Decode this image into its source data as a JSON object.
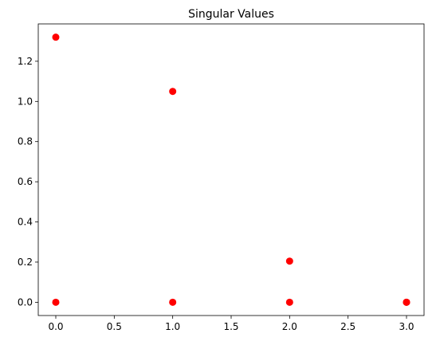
{
  "chart_data": {
    "type": "scatter",
    "title": "Singular Values",
    "xlabel": "",
    "ylabel": "",
    "xlim": [
      -0.15,
      3.15
    ],
    "ylim": [
      -0.066,
      1.386
    ],
    "x_ticks": [
      0.0,
      0.5,
      1.0,
      1.5,
      2.0,
      2.5,
      3.0
    ],
    "x_tick_labels": [
      "0.0",
      "0.5",
      "1.0",
      "1.5",
      "2.0",
      "2.5",
      "3.0"
    ],
    "y_ticks": [
      0.0,
      0.2,
      0.4,
      0.6,
      0.8,
      1.0,
      1.2
    ],
    "y_tick_labels": [
      "0.0",
      "0.2",
      "0.4",
      "0.6",
      "0.8",
      "1.0",
      "1.2"
    ],
    "grid": false,
    "series": [
      {
        "marker_color": "#ff0000",
        "points": [
          {
            "x": 0,
            "y": 1.32
          },
          {
            "x": 0,
            "y": 0.0
          },
          {
            "x": 1,
            "y": 1.05
          },
          {
            "x": 1,
            "y": 0.0
          },
          {
            "x": 2,
            "y": 0.205
          },
          {
            "x": 2,
            "y": 0.0
          },
          {
            "x": 3,
            "y": 0.0
          },
          {
            "x": 3,
            "y": 0.0
          }
        ]
      }
    ]
  }
}
